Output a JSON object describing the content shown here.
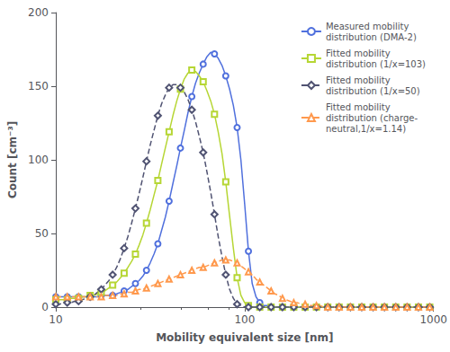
{
  "chart_data": {
    "type": "line",
    "xlabel": "Mobility equivalent size [nm]",
    "ylabel": "Count [cm⁻³]",
    "log": "x",
    "xlim": [
      10,
      1000
    ],
    "xticks": [
      10,
      100,
      1000
    ],
    "ylim": [
      0,
      200
    ],
    "yticks": [
      0,
      50,
      100,
      150,
      200
    ],
    "grid": false,
    "legend": "upper right",
    "x": [
      10.0,
      10.5,
      11.0,
      11.5,
      12.0,
      12.6,
      13.2,
      13.8,
      14.5,
      15.2,
      15.9,
      16.6,
      17.4,
      18.2,
      19.1,
      20.0,
      21.0,
      22.0,
      23.0,
      24.1,
      25.2,
      26.4,
      27.6,
      28.9,
      30.2,
      31.6,
      33.1,
      34.7,
      36.3,
      38.0,
      39.8,
      41.7,
      43.7,
      45.7,
      47.9,
      50.1,
      52.5,
      54.9,
      57.5,
      60.3,
      63.1,
      66.1,
      69.2,
      72.4,
      75.9,
      79.4,
      83.2,
      87.1,
      91.2,
      95.5,
      100.0,
      104.7,
      109.6,
      114.8,
      120.2,
      125.9,
      131.8,
      138.0,
      144.5,
      151.4,
      158.5,
      166.0,
      173.8,
      182.0,
      190.5,
      199.5,
      209.0,
      218.8,
      229.1,
      239.9,
      251.2,
      263.0,
      275.4,
      288.4,
      302.0,
      316.2,
      331.1,
      346.7,
      363.1,
      380.2,
      398.1,
      416.9,
      436.5,
      457.1,
      478.6,
      500.9,
      524.8,
      549.5,
      575.4,
      602.6,
      630.9,
      660.7,
      691.8,
      724.4,
      758.6,
      794.3,
      831.8,
      870.9,
      912.0,
      954.9,
      1000.0
    ],
    "series": [
      {
        "name": "Measured mobility\ndistribution (DMA-2)",
        "marker": "circle",
        "line_style": "solid",
        "values": [
          7,
          7,
          7,
          7,
          7,
          7,
          7,
          7,
          7,
          7,
          7,
          7,
          8,
          8,
          8,
          8,
          9,
          10,
          11,
          12,
          14,
          16,
          18,
          21,
          25,
          30,
          36,
          43,
          52,
          61,
          72,
          84,
          96,
          108,
          120,
          132,
          143,
          152,
          159,
          165,
          170,
          173,
          172,
          169,
          164,
          157,
          148,
          137,
          122,
          100,
          70,
          38,
          16,
          7,
          3,
          1,
          1,
          0,
          0,
          0,
          0,
          0,
          0,
          0,
          0,
          0,
          0,
          0,
          0,
          0,
          0,
          0,
          0,
          0,
          0,
          0,
          0,
          0,
          0,
          0,
          0,
          0,
          0,
          0,
          0,
          0,
          0,
          0,
          0,
          0,
          0,
          0,
          0,
          0,
          0,
          0,
          0,
          0,
          0,
          0,
          0
        ]
      },
      {
        "name": "Fitted mobility\ndistribution (1/x=103)",
        "marker": "square",
        "line_style": "solid",
        "values": [
          5,
          5,
          5,
          5,
          6,
          6,
          6,
          7,
          7,
          8,
          8,
          9,
          10,
          11,
          13,
          15,
          17,
          20,
          23,
          27,
          31,
          36,
          42,
          49,
          57,
          66,
          76,
          86,
          97,
          108,
          119,
          130,
          140,
          148,
          155,
          159,
          161,
          160,
          157,
          153,
          147,
          140,
          131,
          119,
          104,
          85,
          62,
          40,
          20,
          8,
          3,
          1,
          0,
          0,
          0,
          0,
          0,
          0,
          0,
          0,
          0,
          0,
          0,
          0,
          0,
          0,
          0,
          0,
          0,
          0,
          0,
          0,
          0,
          0,
          0,
          0,
          0,
          0,
          0,
          0,
          0,
          0,
          0,
          0,
          0,
          0,
          0,
          0,
          0,
          0,
          0,
          0,
          0,
          0,
          0,
          0,
          0,
          0,
          0,
          0,
          0
        ]
      },
      {
        "name": "Fitted mobility\ndistribution (1/x=50)",
        "marker": "diamond",
        "line_style": "dashed",
        "values": [
          2,
          2,
          3,
          3,
          3,
          4,
          4,
          5,
          6,
          7,
          8,
          10,
          12,
          15,
          18,
          22,
          27,
          33,
          40,
          48,
          57,
          67,
          77,
          88,
          99,
          110,
          120,
          130,
          138,
          144,
          149,
          151,
          151,
          149,
          146,
          141,
          134,
          126,
          116,
          105,
          92,
          78,
          63,
          48,
          34,
          22,
          12,
          6,
          2,
          1,
          0,
          0,
          0,
          0,
          0,
          0,
          0,
          0,
          0,
          0,
          0,
          0,
          0,
          0,
          0,
          0,
          0,
          0,
          0,
          0,
          0,
          0,
          0,
          0,
          0,
          0,
          0,
          0,
          0,
          0,
          0,
          0,
          0,
          0,
          0,
          0,
          0,
          0,
          0,
          0,
          0,
          0,
          0,
          0,
          0,
          0,
          0,
          0,
          0,
          0,
          0
        ]
      },
      {
        "name": "Fitted mobility\ndistribution (charge-\nneutral,1/x=1.14)",
        "marker": "triangle",
        "line_style": "dashed",
        "values": [
          7,
          7,
          7,
          7,
          7,
          7,
          7,
          7,
          7,
          7,
          7,
          7,
          7,
          8,
          8,
          8,
          8,
          9,
          9,
          10,
          10,
          11,
          12,
          12,
          13,
          14,
          15,
          16,
          17,
          18,
          19,
          20,
          21,
          22,
          23,
          24,
          25,
          26,
          27,
          27,
          28,
          29,
          30,
          31,
          32,
          32,
          32,
          31,
          30,
          28,
          26,
          24,
          22,
          19,
          17,
          15,
          13,
          11,
          9,
          8,
          6,
          5,
          4,
          3,
          3,
          2,
          2,
          1,
          1,
          1,
          1,
          0,
          0,
          0,
          0,
          0,
          0,
          0,
          0,
          0,
          0,
          0,
          0,
          0,
          0,
          0,
          0,
          0,
          0,
          0,
          0,
          0,
          0,
          0,
          0,
          0,
          0,
          0,
          0,
          0,
          0
        ]
      }
    ]
  }
}
